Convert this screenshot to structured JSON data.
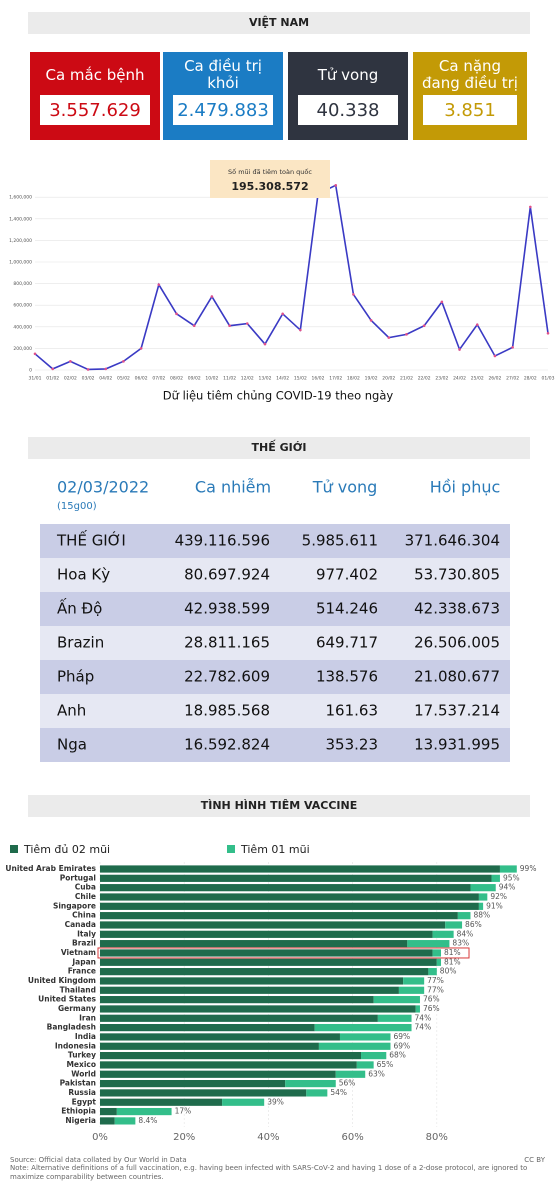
{
  "vietnam": {
    "title": "VIỆT NAM",
    "cards": [
      {
        "label": "Ca mắc bệnh",
        "value": "3.557.629",
        "color": "#cc0a14"
      },
      {
        "label": "Ca điều trị khỏi",
        "value": "2.479.883",
        "color": "#1b7cc4"
      },
      {
        "label": "Tử vong",
        "value": "40.338",
        "color": "#2f3440"
      },
      {
        "label": "Ca nặng đang điều trị",
        "value": "3.851",
        "color": "#c39a06"
      }
    ]
  },
  "world": {
    "title": "THẾ GIỚI",
    "table": {
      "date": "02/03/2022",
      "time": "(15g00)",
      "columns": [
        "Ca nhiễm",
        "Tử vong",
        "Hồi phục"
      ],
      "rows": [
        [
          "THẾ GIỚI",
          "439.116.596",
          "5.985.611",
          "371.646.304"
        ],
        [
          "Hoa Kỳ",
          "80.697.924",
          "977.402",
          "53.730.805"
        ],
        [
          "Ấn Độ",
          "42.938.599",
          "514.246",
          "42.338.673"
        ],
        [
          "Brazin",
          "28.811.165",
          "649.717",
          "26.506.005"
        ],
        [
          "Pháp",
          "22.782.609",
          "138.576",
          "21.080.677"
        ],
        [
          "Anh",
          "18.985.568",
          "161.63",
          "17.537.214"
        ],
        [
          "Nga",
          "16.592.824",
          "353.23",
          "13.931.995"
        ]
      ]
    }
  },
  "chart_data": [
    {
      "type": "line",
      "caption": "Dữ liệu tiêm chủng COVID-19 theo ngày",
      "annotation": {
        "label": "Số mũi đã tiêm toàn quốc",
        "value": "195.308.572"
      },
      "categories": [
        "31/01",
        "01/02",
        "02/02",
        "03/02",
        "04/02",
        "05/02",
        "06/02",
        "07/02",
        "08/02",
        "09/02",
        "10/02",
        "11/02",
        "12/02",
        "13/02",
        "14/02",
        "15/02",
        "16/02",
        "17/02",
        "18/02",
        "19/02",
        "20/02",
        "21/02",
        "22/02",
        "23/02",
        "24/02",
        "25/02",
        "26/02",
        "27/02",
        "28/02",
        "01/03"
      ],
      "values": [
        150000,
        10000,
        80000,
        5000,
        10000,
        80000,
        200000,
        790000,
        520000,
        410000,
        680000,
        410000,
        430000,
        240000,
        520000,
        370000,
        1630000,
        1710000,
        700000,
        460000,
        300000,
        330000,
        410000,
        630000,
        190000,
        420000,
        130000,
        210000,
        1510000,
        340000
      ],
      "color": "#3a3ac4",
      "marker_color": "#e0508a",
      "ylim": [
        0,
        1750000
      ],
      "yticks": [
        0,
        {
          "value": 200000,
          "label": "200,000"
        },
        {
          "value": 400000,
          "label": "400,000"
        },
        {
          "value": 600000,
          "label": "600,000"
        },
        {
          "value": 800000,
          "label": "800,000"
        },
        {
          "value": 1000000,
          "label": "1,000,000"
        },
        {
          "value": 1200000,
          "label": "1,200,000"
        },
        {
          "value": 1400000,
          "label": "1,400,000"
        },
        {
          "value": 1600000,
          "label": "1,600,000"
        }
      ],
      "grid": true
    },
    {
      "type": "stacked_barh",
      "title": "TÌNH HÌNH TIÊM VACCINE",
      "categories": [
        "United Arab Emirates",
        "Portugal",
        "Cuba",
        "Chile",
        "Singapore",
        "China",
        "Canada",
        "Italy",
        "Brazil",
        "Vietnam",
        "Japan",
        "France",
        "United Kingdom",
        "Thailand",
        "United States",
        "Germany",
        "Iran",
        "Bangladesh",
        "India",
        "Indonesia",
        "Turkey",
        "Mexico",
        "World",
        "Pakistan",
        "Russia",
        "Egypt",
        "Ethiopia",
        "Nigeria"
      ],
      "series": [
        {
          "name": "Tiêm đủ 02 mũi",
          "color": "#1f6b4c",
          "values": [
            95,
            93,
            88,
            90,
            90,
            85,
            82,
            79,
            73,
            79,
            80,
            78,
            72,
            71,
            65,
            75,
            66,
            51,
            57,
            52,
            62,
            61,
            56,
            44,
            49,
            29,
            4,
            3.5
          ]
        },
        {
          "name": "Tiêm 01 mũi",
          "color": "#33be8a",
          "values": [
            4,
            2,
            6,
            2,
            1,
            3,
            4,
            5,
            10,
            2,
            1,
            2,
            5,
            6,
            11,
            1,
            8,
            23,
            12,
            17,
            6,
            4,
            7,
            12,
            5,
            10,
            13,
            4.9
          ]
        }
      ],
      "total_labels": [
        "99%",
        "95%",
        "94%",
        "92%",
        "91%",
        "88%",
        "86%",
        "84%",
        "83%",
        "81%",
        "81%",
        "80%",
        "77%",
        "77%",
        "76%",
        "76%",
        "74%",
        "74%",
        "69%",
        "69%",
        "68%",
        "65%",
        "63%",
        "56%",
        "54%",
        "39%",
        "17%",
        "8.4%"
      ],
      "highlight": "Vietnam",
      "xlim": [
        0,
        100
      ],
      "xticks": [
        {
          "value": 0,
          "label": "0%"
        },
        {
          "value": 20,
          "label": "20%"
        },
        {
          "value": 40,
          "label": "40%"
        },
        {
          "value": 60,
          "label": "60%"
        },
        {
          "value": 80,
          "label": "80%"
        }
      ],
      "grid": true,
      "source": "Source: Official data collated by Our World in Data",
      "license": "CC BY",
      "note": "Note: Alternative definitions of a full vaccination, e.g. having been infected with SARS-CoV-2 and having 1 dose of a 2-dose protocol, are ignored to maximize comparability between countries."
    }
  ]
}
